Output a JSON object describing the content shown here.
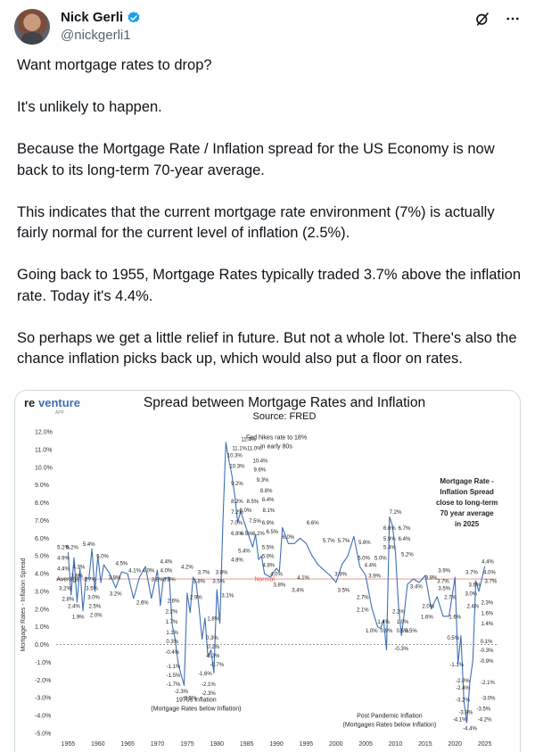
{
  "tweet": {
    "author_name": "Nick Gerli",
    "author_handle": "@nickgerli1",
    "verified_color": "#1d9bf0",
    "icons": [
      "grok-icon",
      "more-icon"
    ],
    "paragraphs": [
      "Want mortgage rates to drop?",
      "It's unlikely to happen.",
      "Because the Mortgage Rate / Inflation spread for the US Economy is now back to its long-term 70-year average.",
      "This indicates that the current mortgage rate environment (7%) is actually fairly normal for the current level of inflation (2.5%).",
      "Going back to 1955, Mortgage Rates typically traded 3.7% above the inflation rate. Today it's 4.4%.",
      "So perhaps we get a little relief in future. But not a whole lot. There's also the chance inflation picks back up, which would also put a floor on rates."
    ]
  },
  "media": {
    "logo_text_re": "re",
    "logo_text_venture": "venture",
    "logo_sub": "APP",
    "accent_color": "#3f6fb5",
    "normal_line_color": "#e98b84"
  },
  "chart_data": {
    "type": "line",
    "title": "Spread between Mortgage Rates and Inflation",
    "subtitle": "Source: FRED",
    "ylabel": "Mortgage Rates - Inflation Spread",
    "xlabel": "",
    "ylim": [
      -5.0,
      12.0
    ],
    "xlim": [
      1953,
      2027
    ],
    "yticks": [
      "12.0%",
      "11.0%",
      "10.0%",
      "9.0%",
      "8.0%",
      "7.0%",
      "6.0%",
      "5.0%",
      "4.0%",
      "3.0%",
      "2.0%",
      "1.0%",
      "0.0%",
      "-1.0%",
      "-2.0%",
      "-3.0%",
      "-4.0%",
      "-5.0%"
    ],
    "xticks": [
      "1955",
      "1960",
      "1965",
      "1970",
      "1975",
      "1980",
      "1985",
      "1990",
      "1995",
      "2000",
      "2005",
      "2010",
      "2015",
      "2020",
      "2025"
    ],
    "grid": false,
    "series": [
      {
        "x": [
          1955.0,
          1955.5,
          1956.0,
          1956.5,
          1957.0,
          1957.5,
          1958.0,
          1958.5,
          1959.0,
          1959.5,
          1960.0,
          1960.5,
          1961.0,
          1962.0,
          1963.0,
          1964.0,
          1965.0,
          1966.0,
          1967.0,
          1968.0,
          1969.0,
          1970.0,
          1970.5,
          1971.0,
          1972.0,
          1972.5,
          1973.0,
          1973.5,
          1974.0,
          1974.5,
          1975.0,
          1975.5,
          1976.0,
          1976.5,
          1977.0,
          1977.5,
          1978.0,
          1978.5,
          1979.0,
          1979.5,
          1980.0,
          1980.5,
          1981.0,
          1981.5,
          1982.0,
          1982.5,
          1983.0,
          1983.5,
          1984.0,
          1985.0,
          1986.0,
          1986.5,
          1987.0,
          1987.5,
          1988.0,
          1989.0,
          1990.0,
          1990.5,
          1991.0,
          1992.0,
          1993.0,
          1994.0,
          1995.0,
          1996.0,
          1997.0,
          1998.0,
          1999.0,
          2000.0,
          2001.0,
          2002.0,
          2003.0,
          2004.0,
          2005.0,
          2006.0,
          2007.0,
          2007.5,
          2008.0,
          2008.5,
          2009.0,
          2009.5,
          2010.0,
          2010.5,
          2011.0,
          2011.5,
          2012.0,
          2013.0,
          2014.0,
          2015.0,
          2016.0,
          2017.0,
          2018.0,
          2019.0,
          2020.0,
          2020.5,
          2021.0,
          2021.5,
          2022.0,
          2022.5,
          2023.0,
          2023.5,
          2024.0,
          2024.5,
          2025.0
        ],
        "y": [
          5.2,
          2.8,
          4.9,
          2.4,
          4.3,
          1.9,
          3.8,
          3.7,
          5.4,
          3.0,
          5.0,
          3.5,
          4.5,
          4.0,
          3.2,
          4.1,
          4.0,
          2.6,
          3.8,
          4.4,
          2.6,
          4.2,
          2.2,
          3.7,
          3.8,
          1.1,
          0.3,
          -1.1,
          -1.7,
          -2.3,
          2.9,
          1.8,
          3.8,
          3.5,
          2.1,
          0.3,
          1.5,
          -0.7,
          -0.3,
          -1.6,
          3.1,
          1.2,
          6.8,
          11.4,
          10.4,
          9.6,
          8.4,
          6.9,
          7.5,
          6.5,
          5.5,
          6.2,
          4.8,
          5.0,
          4.0,
          3.8,
          4.3,
          4.1,
          6.6,
          5.7,
          5.7,
          6.0,
          5.7,
          5.0,
          4.5,
          4.2,
          3.9,
          3.5,
          4.5,
          5.0,
          6.1,
          4.4,
          3.9,
          2.1,
          1.0,
          0.9,
          1.4,
          -0.3,
          7.2,
          6.7,
          5.2,
          2.2,
          0.5,
          1.8,
          3.4,
          3.7,
          3.5,
          3.9,
          2.0,
          2.7,
          1.6,
          1.6,
          3.8,
          -1.1,
          0.5,
          -3.2,
          -4.4,
          -2.1,
          -0.9,
          3.6,
          3.0,
          3.7,
          4.4
        ]
      }
    ],
    "annotations": [
      {
        "text": "Average",
        "x": 1955.0,
        "y": 3.7
      },
      {
        "text": "Normal",
        "x": 1988.0,
        "y": 3.7
      },
      {
        "text": "Fed hikes rate to 18%",
        "x": 1990.0,
        "y": 11.7
      },
      {
        "text": "in early 80s",
        "x": 1990.0,
        "y": 11.2
      },
      {
        "text": "Mortgage Rate -",
        "x": 2022.0,
        "y": 9.2
      },
      {
        "text": "Inflation Spread",
        "x": 2022.0,
        "y": 8.6
      },
      {
        "text": "close to long-term",
        "x": 2022.0,
        "y": 8.0
      },
      {
        "text": "70 year average",
        "x": 2022.0,
        "y": 7.4
      },
      {
        "text": "in 2025",
        "x": 2022.0,
        "y": 6.8
      },
      {
        "text": "1970s Inflation",
        "x": 1976.5,
        "y": -3.1
      },
      {
        "text": "(Mortgage Rates below Inflation)",
        "x": 1976.5,
        "y": -3.6
      },
      {
        "text": "Post Pandemic Inflation",
        "x": 2009.0,
        "y": -4.0
      },
      {
        "text": "(Mortgages Rates below Inflation)",
        "x": 2009.0,
        "y": -4.5
      }
    ],
    "data_labels": [
      {
        "text": "5.2%",
        "x": 1954.2,
        "y": 5.5
      },
      {
        "text": "5.2%",
        "x": 1955.7,
        "y": 5.5
      },
      {
        "text": "4.9%",
        "x": 1954.2,
        "y": 4.9
      },
      {
        "text": "4.4%",
        "x": 1954.2,
        "y": 4.3
      },
      {
        "text": "3.8%",
        "x": 1956.5,
        "y": 3.9
      },
      {
        "text": "4.3%",
        "x": 1956.8,
        "y": 4.4
      },
      {
        "text": "3.2%",
        "x": 1954.5,
        "y": 3.2
      },
      {
        "text": "2.8%",
        "x": 1955.0,
        "y": 2.6
      },
      {
        "text": "2.4%",
        "x": 1956.0,
        "y": 2.2
      },
      {
        "text": "1.9%",
        "x": 1956.7,
        "y": 1.6
      },
      {
        "text": "5.4%",
        "x": 1958.5,
        "y": 5.7
      },
      {
        "text": "5.0%",
        "x": 1960.8,
        "y": 5.0
      },
      {
        "text": "3.7%",
        "x": 1958.7,
        "y": 3.7
      },
      {
        "text": "3.5%",
        "x": 1959.0,
        "y": 3.2
      },
      {
        "text": "3.0%",
        "x": 1959.3,
        "y": 2.7
      },
      {
        "text": "2.5%",
        "x": 1959.5,
        "y": 2.2
      },
      {
        "text": "2.0%",
        "x": 1959.7,
        "y": 1.7
      },
      {
        "text": "4.5%",
        "x": 1964.0,
        "y": 4.6
      },
      {
        "text": "3.8%",
        "x": 1962.8,
        "y": 3.8
      },
      {
        "text": "3.2%",
        "x": 1963.0,
        "y": 2.9
      },
      {
        "text": "4.1%",
        "x": 1966.2,
        "y": 4.2
      },
      {
        "text": "4.0%",
        "x": 1968.5,
        "y": 4.2
      },
      {
        "text": "2.6%",
        "x": 1967.5,
        "y": 2.4
      },
      {
        "text": "3.8%",
        "x": 1970.0,
        "y": 3.7
      },
      {
        "text": "4.4%",
        "x": 1971.5,
        "y": 4.7
      },
      {
        "text": "4.0%",
        "x": 1971.5,
        "y": 4.2
      },
      {
        "text": "3.8%",
        "x": 1972.0,
        "y": 3.7
      },
      {
        "text": "4.2%",
        "x": 1975.0,
        "y": 4.4
      },
      {
        "text": "2.6%",
        "x": 1972.7,
        "y": 2.5
      },
      {
        "text": "2.2%",
        "x": 1972.4,
        "y": 1.9
      },
      {
        "text": "1.7%",
        "x": 1972.4,
        "y": 1.3
      },
      {
        "text": "1.1%",
        "x": 1972.5,
        "y": 0.7
      },
      {
        "text": "0.3%",
        "x": 1972.5,
        "y": 0.2
      },
      {
        "text": "-0.4%",
        "x": 1972.5,
        "y": -0.4
      },
      {
        "text": "-1.1%",
        "x": 1972.7,
        "y": -1.2
      },
      {
        "text": "-1.5%",
        "x": 1972.7,
        "y": -1.7
      },
      {
        "text": "-1.7%",
        "x": 1972.7,
        "y": -2.2
      },
      {
        "text": "-2.3%",
        "x": 1974.0,
        "y": -2.6
      },
      {
        "text": "-2.5%",
        "x": 1975.4,
        "y": -3.0
      },
      {
        "text": "3.7%",
        "x": 1977.8,
        "y": 4.1
      },
      {
        "text": "3.8%",
        "x": 1977.0,
        "y": 3.6
      },
      {
        "text": "2.9%",
        "x": 1976.5,
        "y": 2.7
      },
      {
        "text": "1.8%",
        "x": 1979.4,
        "y": 1.5
      },
      {
        "text": "0.3%",
        "x": 1979.2,
        "y": 0.4
      },
      {
        "text": "0.2%",
        "x": 1979.4,
        "y": -0.1
      },
      {
        "text": "-0.3%",
        "x": 1979.3,
        "y": -0.6
      },
      {
        "text": "-0.7%",
        "x": 1980.0,
        "y": -1.1
      },
      {
        "text": "-1.6%",
        "x": 1978.0,
        "y": -1.6
      },
      {
        "text": "-2.1%",
        "x": 1978.6,
        "y": -2.2
      },
      {
        "text": "-2.3%",
        "x": 1978.6,
        "y": -2.7
      },
      {
        "text": "3.8%",
        "x": 1980.8,
        "y": 4.1
      },
      {
        "text": "3.5%",
        "x": 1980.3,
        "y": 3.6
      },
      {
        "text": "3.1%",
        "x": 1981.8,
        "y": 2.8
      },
      {
        "text": "4.8%",
        "x": 1983.4,
        "y": 4.8
      },
      {
        "text": "6.8%",
        "x": 1983.4,
        "y": 6.3
      },
      {
        "text": "7.0%",
        "x": 1983.3,
        "y": 6.9
      },
      {
        "text": "7.2%",
        "x": 1983.4,
        "y": 7.5
      },
      {
        "text": "8.2%",
        "x": 1983.4,
        "y": 8.1
      },
      {
        "text": "9.2%",
        "x": 1983.4,
        "y": 9.1
      },
      {
        "text": "10.3%",
        "x": 1983.4,
        "y": 10.1
      },
      {
        "text": "10.3%",
        "x": 1983.0,
        "y": 10.7
      },
      {
        "text": "11.1%",
        "x": 1983.8,
        "y": 11.1
      },
      {
        "text": "11.4%",
        "x": 1985.3,
        "y": 11.6
      },
      {
        "text": "11.0%",
        "x": 1986.3,
        "y": 11.1
      },
      {
        "text": "10.4%",
        "x": 1987.3,
        "y": 10.4
      },
      {
        "text": "9.6%",
        "x": 1987.2,
        "y": 9.9
      },
      {
        "text": "9.3%",
        "x": 1987.7,
        "y": 9.3
      },
      {
        "text": "8.8%",
        "x": 1988.3,
        "y": 8.7
      },
      {
        "text": "8.4%",
        "x": 1988.6,
        "y": 8.2
      },
      {
        "text": "8.1%",
        "x": 1988.7,
        "y": 7.6
      },
      {
        "text": "8.0%",
        "x": 1984.8,
        "y": 7.6
      },
      {
        "text": "8.5%",
        "x": 1986.0,
        "y": 8.1
      },
      {
        "text": "6.9%",
        "x": 1988.6,
        "y": 6.9
      },
      {
        "text": "7.5%",
        "x": 1986.4,
        "y": 7.0
      },
      {
        "text": "6.5%",
        "x": 1985.0,
        "y": 6.3
      },
      {
        "text": "6.2%",
        "x": 1987.0,
        "y": 6.3
      },
      {
        "text": "6.5%",
        "x": 1989.3,
        "y": 6.4
      },
      {
        "text": "5.4%",
        "x": 1984.6,
        "y": 5.3
      },
      {
        "text": "6.0%",
        "x": 1992.0,
        "y": 6.1
      },
      {
        "text": "5.5%",
        "x": 1988.6,
        "y": 5.5
      },
      {
        "text": "5.0%",
        "x": 1988.6,
        "y": 5.0
      },
      {
        "text": "4.8%",
        "x": 1988.7,
        "y": 4.5
      },
      {
        "text": "4.0%",
        "x": 1990.0,
        "y": 4.0
      },
      {
        "text": "3.8%",
        "x": 1990.5,
        "y": 3.4
      },
      {
        "text": "3.4%",
        "x": 1993.6,
        "y": 3.1
      },
      {
        "text": "4.1%",
        "x": 1994.5,
        "y": 3.8
      },
      {
        "text": "6.6%",
        "x": 1996.1,
        "y": 6.9
      },
      {
        "text": "5.7%",
        "x": 1998.8,
        "y": 5.9
      },
      {
        "text": "5.7%",
        "x": 2001.3,
        "y": 5.9
      },
      {
        "text": "3.9%",
        "x": 2000.8,
        "y": 4.0
      },
      {
        "text": "3.5%",
        "x": 2001.3,
        "y": 3.1
      },
      {
        "text": "5.6%",
        "x": 2004.8,
        "y": 5.8
      },
      {
        "text": "5.0%",
        "x": 2004.7,
        "y": 4.9
      },
      {
        "text": "4.4%",
        "x": 2005.8,
        "y": 4.5
      },
      {
        "text": "3.9%",
        "x": 2006.5,
        "y": 3.9
      },
      {
        "text": "2.7%",
        "x": 2004.5,
        "y": 2.7
      },
      {
        "text": "2.1%",
        "x": 2004.5,
        "y": 2.0
      },
      {
        "text": "1.0%",
        "x": 2006.0,
        "y": 0.8
      },
      {
        "text": "0.9%",
        "x": 2008.5,
        "y": 0.8
      },
      {
        "text": "1.4%",
        "x": 2008.0,
        "y": 1.3
      },
      {
        "text": "0.5%",
        "x": 2011.2,
        "y": 0.8
      },
      {
        "text": "-0.3%",
        "x": 2011.0,
        "y": -0.2
      },
      {
        "text": "5.0%",
        "x": 2007.5,
        "y": 4.9
      },
      {
        "text": "5.4%",
        "x": 2009.0,
        "y": 5.5
      },
      {
        "text": "5.9%",
        "x": 2009.0,
        "y": 6.0
      },
      {
        "text": "6.6%",
        "x": 2009.0,
        "y": 6.6
      },
      {
        "text": "7.2%",
        "x": 2010.0,
        "y": 7.5
      },
      {
        "text": "6.7%",
        "x": 2011.5,
        "y": 6.6
      },
      {
        "text": "6.4%",
        "x": 2011.5,
        "y": 6.0
      },
      {
        "text": "5.2%",
        "x": 2012.0,
        "y": 5.1
      },
      {
        "text": "2.2%",
        "x": 2010.5,
        "y": 1.9
      },
      {
        "text": "1.0%",
        "x": 2011.2,
        "y": 1.3
      },
      {
        "text": "0.5%",
        "x": 2012.6,
        "y": 0.8
      },
      {
        "text": "3.4%",
        "x": 2013.5,
        "y": 3.3
      },
      {
        "text": "2.0%",
        "x": 2015.5,
        "y": 2.2
      },
      {
        "text": "1.6%",
        "x": 2015.3,
        "y": 1.6
      },
      {
        "text": "3.8%",
        "x": 2016.0,
        "y": 3.8
      },
      {
        "text": "3.7%",
        "x": 2018.0,
        "y": 3.6
      },
      {
        "text": "3.9%",
        "x": 2018.2,
        "y": 4.2
      },
      {
        "text": "3.5%",
        "x": 2018.2,
        "y": 3.2
      },
      {
        "text": "2.7%",
        "x": 2019.2,
        "y": 2.7
      },
      {
        "text": "1.6%",
        "x": 2020.0,
        "y": 1.6
      },
      {
        "text": "0.5%",
        "x": 2019.7,
        "y": 0.4
      },
      {
        "text": "-1.1%",
        "x": 2020.3,
        "y": -1.1
      },
      {
        "text": "-2.0%",
        "x": 2021.3,
        "y": -2.0
      },
      {
        "text": "-2.4%",
        "x": 2021.3,
        "y": -2.4
      },
      {
        "text": "-3.2%",
        "x": 2021.3,
        "y": -3.1
      },
      {
        "text": "-3.8%",
        "x": 2021.8,
        "y": -3.8
      },
      {
        "text": "-4.1%",
        "x": 2020.8,
        "y": -4.2
      },
      {
        "text": "-4.4%",
        "x": 2022.5,
        "y": -4.7
      },
      {
        "text": "-4.2%",
        "x": 2025.0,
        "y": -4.2
      },
      {
        "text": "-3.5%",
        "x": 2024.8,
        "y": -3.6
      },
      {
        "text": "-3.0%",
        "x": 2025.6,
        "y": -3.0
      },
      {
        "text": "-2.1%",
        "x": 2025.5,
        "y": -2.1
      },
      {
        "text": "-0.9%",
        "x": 2025.3,
        "y": -0.9
      },
      {
        "text": "-0.3%",
        "x": 2025.3,
        "y": -0.3
      },
      {
        "text": "0.1%",
        "x": 2025.3,
        "y": 0.2
      },
      {
        "text": "1.4%",
        "x": 2025.4,
        "y": 1.2
      },
      {
        "text": "1.6%",
        "x": 2025.4,
        "y": 1.8
      },
      {
        "text": "2.3%",
        "x": 2025.4,
        "y": 2.4
      },
      {
        "text": "2.4%",
        "x": 2023.0,
        "y": 2.2
      },
      {
        "text": "3.0%",
        "x": 2022.7,
        "y": 2.9
      },
      {
        "text": "3.6%",
        "x": 2023.3,
        "y": 3.4
      },
      {
        "text": "3.7%",
        "x": 2022.8,
        "y": 4.1
      },
      {
        "text": "4.4%",
        "x": 2025.5,
        "y": 4.7
      },
      {
        "text": "4.0%",
        "x": 2025.8,
        "y": 4.1
      },
      {
        "text": "3.7%",
        "x": 2026.0,
        "y": 3.6
      }
    ]
  }
}
